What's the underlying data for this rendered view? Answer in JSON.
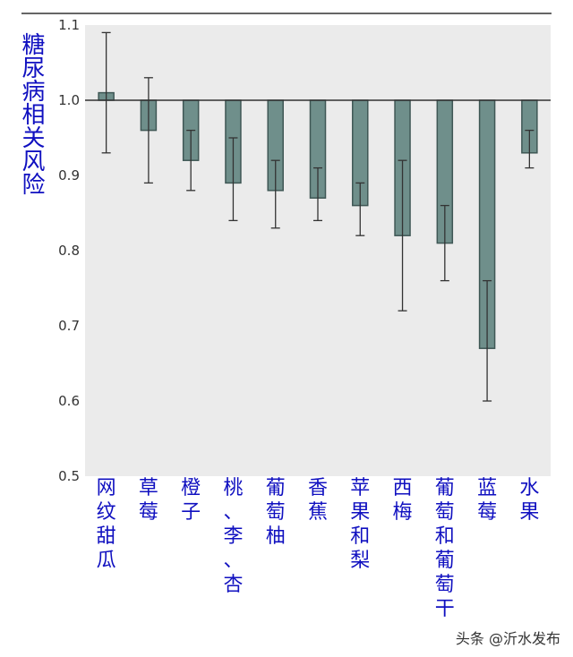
{
  "chart_data": {
    "type": "bar",
    "ylabel": "糖尿病相关风险",
    "ylim": [
      0.5,
      1.1
    ],
    "yticks": [
      "0.5",
      "0.6",
      "0.7",
      "0.8",
      "0.9",
      "1.0",
      "1.1"
    ],
    "baseline": 1.0,
    "grid": false,
    "categories": [
      "网纹甜瓜",
      "草莓",
      "橙子",
      "桃、李、杏",
      "葡萄柚",
      "香蕉",
      "苹果和梨",
      "西梅",
      "葡萄和葡萄干",
      "蓝莓",
      "水果"
    ],
    "values": [
      1.01,
      0.96,
      0.92,
      0.89,
      0.88,
      0.87,
      0.86,
      0.82,
      0.81,
      0.67,
      0.93
    ],
    "error_low": [
      0.93,
      0.89,
      0.88,
      0.84,
      0.83,
      0.84,
      0.82,
      0.72,
      0.76,
      0.6,
      0.91
    ],
    "error_high": [
      1.09,
      1.03,
      0.96,
      0.95,
      0.92,
      0.91,
      0.89,
      0.92,
      0.86,
      0.76,
      0.96
    ],
    "colors": {
      "bar": "#6f8f8b",
      "bar_edge": "#3f5755",
      "plot_bg": "#ebebeb",
      "label": "#1010c0",
      "error": "#333333"
    }
  },
  "watermark": "头条 @沂水发布"
}
